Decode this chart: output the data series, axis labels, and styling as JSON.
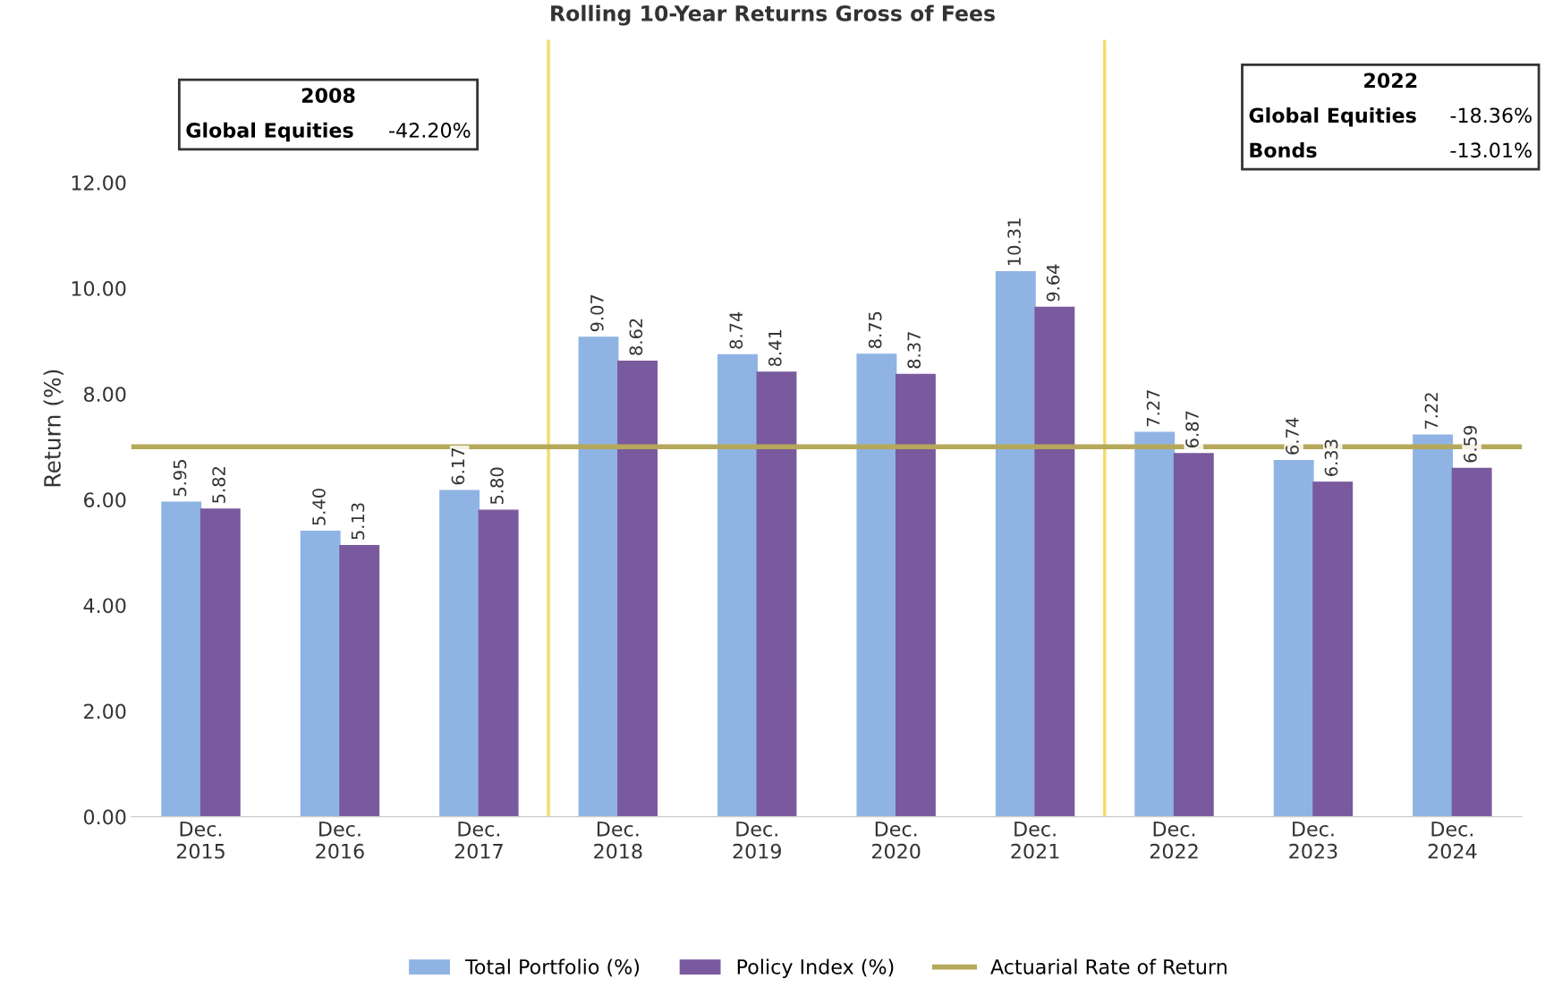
{
  "chart_data": {
    "type": "bar",
    "title": "Rolling 10-Year Returns Gross of Fees",
    "ylabel": "Return (%)",
    "categories": [
      "Dec.\n2015",
      "Dec.\n2016",
      "Dec.\n2017",
      "Dec.\n2018",
      "Dec.\n2019",
      "Dec.\n2020",
      "Dec.\n2021",
      "Dec.\n2022",
      "Dec.\n2023",
      "Dec.\n2024"
    ],
    "series": [
      {
        "name": "Total Portfolio (%)",
        "color": "#8fb4e3",
        "values": [
          5.95,
          5.4,
          6.17,
          9.07,
          8.74,
          8.75,
          10.31,
          7.27,
          6.74,
          7.22
        ],
        "value_labels": [
          "5.95",
          "5.40",
          "6.17",
          "9.07",
          "8.74",
          "8.75",
          "10.31",
          "7.27",
          "6.74",
          "7.22"
        ]
      },
      {
        "name": "Policy Index (%)",
        "color": "#7a5a9e",
        "values": [
          5.82,
          5.13,
          5.8,
          8.62,
          8.41,
          8.37,
          9.64,
          6.87,
          6.33,
          6.59
        ],
        "value_labels": [
          "5.82",
          "5.13",
          "5.80",
          "8.62",
          "8.41",
          "8.37",
          "9.64",
          "6.87",
          "6.33",
          "6.59"
        ]
      }
    ],
    "ylim": [
      0,
      14.7
    ],
    "yticks": [
      {
        "value": 0,
        "label": "0.00"
      },
      {
        "value": 2,
        "label": "2.00"
      },
      {
        "value": 4,
        "label": "4.00"
      },
      {
        "value": 6,
        "label": "6.00"
      },
      {
        "value": 8,
        "label": "8.00"
      },
      {
        "value": 10,
        "label": "10.00"
      },
      {
        "value": 12,
        "label": "12.00"
      }
    ],
    "grid": false,
    "legend": "bottom",
    "ref_lines": [
      {
        "axis": "y",
        "value": 7.0,
        "label": "Actuarial Rate of Return",
        "color": "#b5a85a"
      }
    ],
    "annotations": [
      "2008",
      "Global Equities",
      "-42.20%",
      "2022",
      "Global Equities",
      "-18.36%",
      "Bonds",
      "-13.01%"
    ]
  }
}
